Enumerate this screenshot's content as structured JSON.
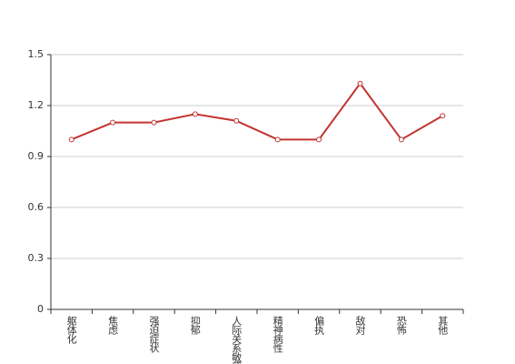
{
  "chart_data": {
    "type": "line",
    "categories": [
      "躯体化",
      "焦虑",
      "强迫症状",
      "抑郁",
      "人际关系敏感",
      "精神病性",
      "偏执",
      "敌对",
      "恐怖",
      "其他"
    ],
    "series": [
      {
        "color": "#c23531",
        "values": [
          1.0,
          1.1,
          1.1,
          1.15,
          1.11,
          1.0,
          1.0,
          1.33,
          1.0,
          1.14
        ]
      }
    ],
    "ylim": [
      0,
      1.5
    ],
    "yticks": [
      0,
      0.3,
      0.6,
      0.9,
      1.2,
      1.5
    ],
    "grid": true
  }
}
